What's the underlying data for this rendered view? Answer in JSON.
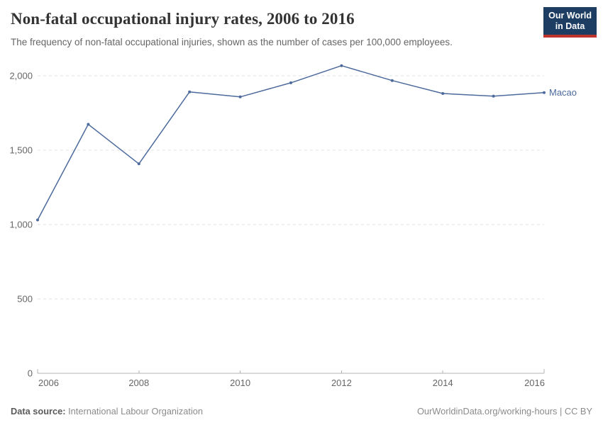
{
  "header": {
    "title": "Non-fatal occupational injury rates, 2006 to 2016",
    "subtitle": "The frequency of non-fatal occupational injuries, shown as the number of cases per 100,000 employees."
  },
  "logo": {
    "line1": "Our World",
    "line2": "in Data",
    "bg_color": "#1d3d63",
    "accent_color": "#bc342b"
  },
  "footer": {
    "data_source_label": "Data source:",
    "data_source_value": "International Labour Organization",
    "credit": "OurWorldinData.org/working-hours | CC BY"
  },
  "chart_data": {
    "type": "line",
    "title": "Non-fatal occupational injury rates, 2006 to 2016",
    "subtitle": "The frequency of non-fatal occupational injuries, shown as the number of cases per 100,000 employees.",
    "x": [
      2006,
      2007,
      2008,
      2009,
      2010,
      2011,
      2012,
      2013,
      2014,
      2015,
      2016
    ],
    "series": [
      {
        "name": "Macao",
        "color": "#4C6A9C",
        "values": [
          1031,
          1674,
          1408,
          1892,
          1858,
          1953,
          2068,
          1968,
          1881,
          1863,
          1887
        ]
      }
    ],
    "xlabel": "",
    "ylabel": "",
    "x_ticks": [
      2006,
      2008,
      2010,
      2012,
      2014,
      2016
    ],
    "y_ticks": [
      0,
      500,
      1000,
      1500,
      2000
    ],
    "ylim": [
      0,
      2000
    ],
    "grid": "horizontal-dashed",
    "legend_position": "line-end-label",
    "colors": {
      "grid": "#e2e2e2",
      "axis": "#b3b3b3",
      "tick_label": "#666666"
    }
  }
}
